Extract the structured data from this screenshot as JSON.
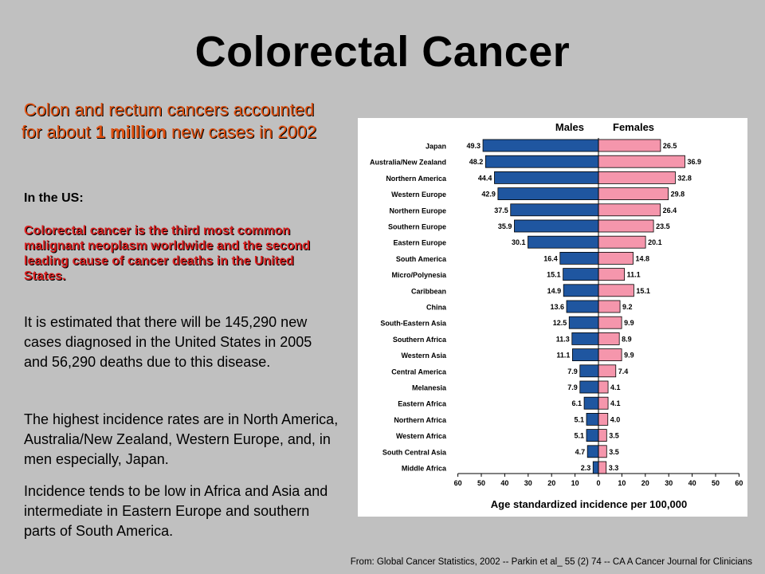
{
  "slide": {
    "title": "Colorectal Cancer",
    "subtitle_before": "Colon and rectum cancers accounted for about ",
    "subtitle_bold": "1 million",
    "subtitle_after": " new cases in 2002",
    "us_label": "In the US:",
    "red_paragraph": "Colorectal cancer is the third most common malignant neoplasm worldwide and the second leading cause of cancer deaths in the United States.",
    "paragraph1": "It is estimated that there will be 145,290 new cases diagnosed in the United States in 2005 and 56,290 deaths due to this disease.",
    "paragraph2": "The highest incidence rates are in North America, Australia/New Zealand, Western Europe, and, in men especially, Japan.",
    "paragraph3": "Incidence tends to be low in Africa and Asia and intermediate in Eastern Europe and southern parts of South America.",
    "source": "From: Global Cancer Statistics, 2002 -- Parkin et al_ 55 (2) 74 -- CA A Cancer Journal for Clinicians"
  },
  "chart_data": {
    "type": "bar",
    "orientation": "horizontal-pyramid",
    "xlabel": "Age standardized incidence per 100,000",
    "xlim": [
      0,
      60
    ],
    "ticks": [
      60,
      50,
      40,
      30,
      20,
      10,
      0,
      10,
      20,
      30,
      40,
      50,
      60
    ],
    "categories": [
      "Japan",
      "Australia/New Zealand",
      "Northern America",
      "Western Europe",
      "Northern Europe",
      "Southern Europe",
      "Eastern Europe",
      "South America",
      "Micro/Polynesia",
      "Caribbean",
      "China",
      "South-Eastern Asia",
      "Southern Africa",
      "Western Asia",
      "Central America",
      "Melanesia",
      "Eastern Africa",
      "Northern Africa",
      "Western Africa",
      "South Central Asia",
      "Middle Africa"
    ],
    "series": [
      {
        "name": "Males",
        "color": "#1f56a0",
        "values": [
          49.3,
          48.2,
          44.4,
          42.9,
          37.5,
          35.9,
          30.1,
          16.4,
          15.1,
          14.9,
          13.6,
          12.5,
          11.3,
          11.1,
          7.9,
          7.9,
          6.1,
          5.1,
          5.1,
          4.7,
          2.3
        ]
      },
      {
        "name": "Females",
        "color": "#f596ac",
        "values": [
          26.5,
          36.9,
          32.8,
          29.8,
          26.4,
          23.5,
          20.1,
          14.8,
          11.1,
          15.1,
          9.2,
          9.9,
          8.9,
          9.9,
          7.4,
          4.1,
          4.1,
          4.0,
          3.5,
          3.5,
          3.3
        ]
      }
    ]
  }
}
